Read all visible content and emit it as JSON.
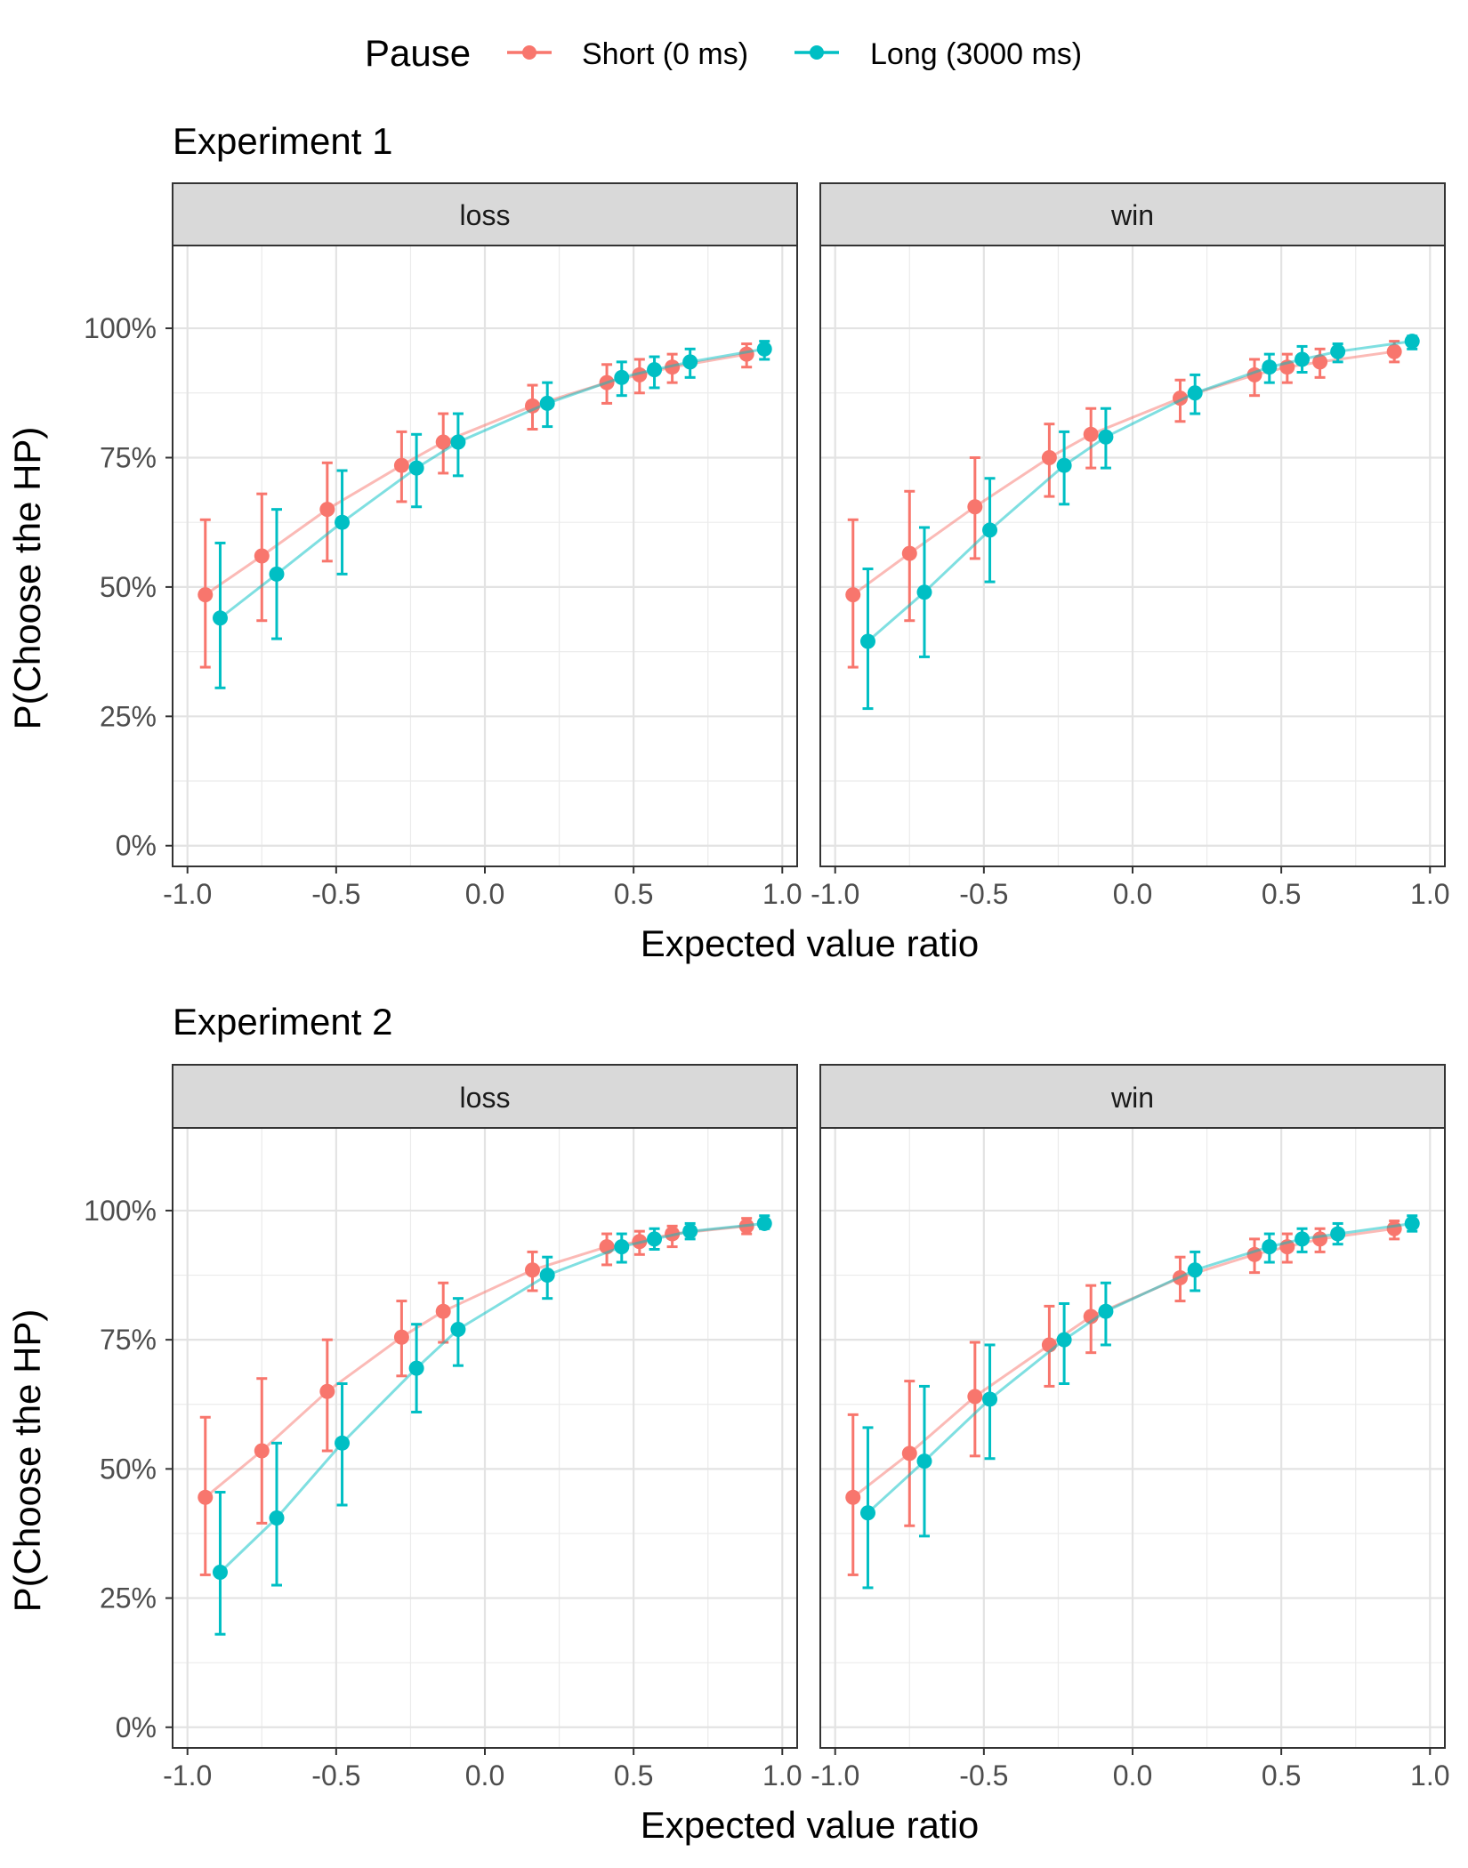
{
  "legend": {
    "title": "Pause",
    "position": "top",
    "items": [
      {
        "label": "Short (0 ms)",
        "color": "#F8766D"
      },
      {
        "label": "Long (3000 ms)",
        "color": "#00BFC4"
      }
    ]
  },
  "chart_data": [
    {
      "type": "line",
      "title": "Experiment 1",
      "xlabel": "Expected value ratio",
      "ylabel": "P(Choose the HP)",
      "xlim": [
        -1.05,
        1.05
      ],
      "ylim": [
        -0.04,
        1.16
      ],
      "x_ticks": [
        -1.0,
        -0.5,
        0.0,
        0.5,
        1.0
      ],
      "x_tick_labels": [
        "-1.0",
        "-0.5",
        "0.0",
        "0.5",
        "1.0"
      ],
      "y_ticks": [
        0,
        0.25,
        0.5,
        0.75,
        1.0
      ],
      "y_tick_labels": [
        "0%",
        "25%",
        "50%",
        "75%",
        "100%"
      ],
      "grid": true,
      "panels": [
        {
          "strip": "loss",
          "series": [
            {
              "name": "Short (0 ms)",
              "x": [
                -0.94,
                -0.75,
                -0.53,
                -0.28,
                -0.14,
                0.16,
                0.41,
                0.52,
                0.63,
                0.88
              ],
              "y": [
                0.485,
                0.56,
                0.65,
                0.735,
                0.78,
                0.85,
                0.895,
                0.91,
                0.925,
                0.95
              ],
              "lo": [
                0.345,
                0.435,
                0.55,
                0.665,
                0.72,
                0.805,
                0.855,
                0.875,
                0.895,
                0.925
              ],
              "hi": [
                0.63,
                0.68,
                0.74,
                0.8,
                0.835,
                0.89,
                0.93,
                0.94,
                0.95,
                0.97
              ]
            },
            {
              "name": "Long (3000 ms)",
              "x": [
                -0.89,
                -0.7,
                -0.48,
                -0.23,
                -0.09,
                0.21,
                0.46,
                0.57,
                0.69,
                0.94
              ],
              "y": [
                0.44,
                0.525,
                0.625,
                0.73,
                0.78,
                0.855,
                0.905,
                0.92,
                0.935,
                0.96
              ],
              "lo": [
                0.305,
                0.4,
                0.525,
                0.655,
                0.715,
                0.81,
                0.87,
                0.885,
                0.905,
                0.94
              ],
              "hi": [
                0.585,
                0.65,
                0.725,
                0.795,
                0.835,
                0.895,
                0.935,
                0.945,
                0.96,
                0.975
              ]
            }
          ]
        },
        {
          "strip": "win",
          "series": [
            {
              "name": "Short (0 ms)",
              "x": [
                -0.94,
                -0.75,
                -0.53,
                -0.28,
                -0.14,
                0.16,
                0.41,
                0.52,
                0.63,
                0.88
              ],
              "y": [
                0.485,
                0.565,
                0.655,
                0.75,
                0.795,
                0.865,
                0.91,
                0.925,
                0.935,
                0.955
              ],
              "lo": [
                0.345,
                0.435,
                0.555,
                0.675,
                0.73,
                0.82,
                0.87,
                0.895,
                0.905,
                0.935
              ],
              "hi": [
                0.63,
                0.685,
                0.75,
                0.815,
                0.845,
                0.9,
                0.94,
                0.95,
                0.96,
                0.975
              ]
            },
            {
              "name": "Long (3000 ms)",
              "x": [
                -0.89,
                -0.7,
                -0.48,
                -0.23,
                -0.09,
                0.21,
                0.46,
                0.57,
                0.69,
                0.94
              ],
              "y": [
                0.395,
                0.49,
                0.61,
                0.735,
                0.79,
                0.875,
                0.925,
                0.94,
                0.955,
                0.975
              ],
              "lo": [
                0.265,
                0.365,
                0.51,
                0.66,
                0.73,
                0.835,
                0.895,
                0.915,
                0.935,
                0.96
              ],
              "hi": [
                0.535,
                0.615,
                0.71,
                0.8,
                0.845,
                0.91,
                0.95,
                0.965,
                0.97,
                0.985
              ]
            }
          ]
        }
      ]
    },
    {
      "type": "line",
      "title": "Experiment 2",
      "xlabel": "Expected value ratio",
      "ylabel": "P(Choose the HP)",
      "xlim": [
        -1.05,
        1.05
      ],
      "ylim": [
        -0.04,
        1.16
      ],
      "x_ticks": [
        -1.0,
        -0.5,
        0.0,
        0.5,
        1.0
      ],
      "x_tick_labels": [
        "-1.0",
        "-0.5",
        "0.0",
        "0.5",
        "1.0"
      ],
      "y_ticks": [
        0,
        0.25,
        0.5,
        0.75,
        1.0
      ],
      "y_tick_labels": [
        "0%",
        "25%",
        "50%",
        "75%",
        "100%"
      ],
      "grid": true,
      "panels": [
        {
          "strip": "loss",
          "series": [
            {
              "name": "Short (0 ms)",
              "x": [
                -0.94,
                -0.75,
                -0.53,
                -0.28,
                -0.14,
                0.16,
                0.41,
                0.52,
                0.63,
                0.88
              ],
              "y": [
                0.445,
                0.535,
                0.65,
                0.755,
                0.805,
                0.885,
                0.93,
                0.94,
                0.955,
                0.97
              ],
              "lo": [
                0.295,
                0.395,
                0.535,
                0.68,
                0.745,
                0.845,
                0.895,
                0.915,
                0.93,
                0.955
              ],
              "hi": [
                0.6,
                0.675,
                0.75,
                0.825,
                0.86,
                0.92,
                0.955,
                0.96,
                0.97,
                0.985
              ]
            },
            {
              "name": "Long (3000 ms)",
              "x": [
                -0.89,
                -0.7,
                -0.48,
                -0.23,
                -0.09,
                0.21,
                0.46,
                0.57,
                0.69,
                0.94
              ],
              "y": [
                0.3,
                0.405,
                0.55,
                0.695,
                0.77,
                0.875,
                0.93,
                0.945,
                0.96,
                0.975
              ],
              "lo": [
                0.18,
                0.275,
                0.43,
                0.61,
                0.7,
                0.83,
                0.9,
                0.925,
                0.945,
                0.965
              ],
              "hi": [
                0.455,
                0.55,
                0.665,
                0.78,
                0.83,
                0.91,
                0.955,
                0.965,
                0.975,
                0.99
              ]
            }
          ]
        },
        {
          "strip": "win",
          "series": [
            {
              "name": "Short (0 ms)",
              "x": [
                -0.94,
                -0.75,
                -0.53,
                -0.28,
                -0.14,
                0.16,
                0.41,
                0.52,
                0.63,
                0.88
              ],
              "y": [
                0.445,
                0.53,
                0.64,
                0.74,
                0.795,
                0.87,
                0.915,
                0.93,
                0.945,
                0.965
              ],
              "lo": [
                0.295,
                0.39,
                0.525,
                0.66,
                0.725,
                0.825,
                0.88,
                0.9,
                0.92,
                0.945
              ],
              "hi": [
                0.605,
                0.67,
                0.745,
                0.815,
                0.855,
                0.91,
                0.945,
                0.955,
                0.965,
                0.98
              ]
            },
            {
              "name": "Long (3000 ms)",
              "x": [
                -0.89,
                -0.7,
                -0.48,
                -0.23,
                -0.09,
                0.21,
                0.46,
                0.57,
                0.69,
                0.94
              ],
              "y": [
                0.415,
                0.515,
                0.635,
                0.75,
                0.805,
                0.885,
                0.93,
                0.945,
                0.955,
                0.975
              ],
              "lo": [
                0.27,
                0.37,
                0.52,
                0.665,
                0.74,
                0.845,
                0.9,
                0.92,
                0.935,
                0.96
              ],
              "hi": [
                0.58,
                0.66,
                0.74,
                0.82,
                0.86,
                0.92,
                0.955,
                0.965,
                0.975,
                0.99
              ]
            }
          ]
        }
      ]
    }
  ]
}
